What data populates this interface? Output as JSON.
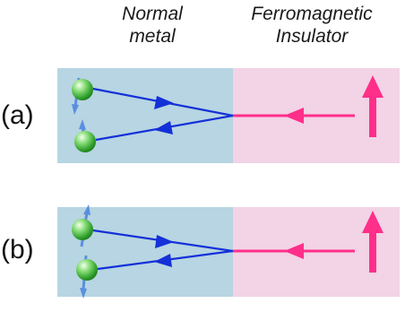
{
  "headers": {
    "normal_metal": [
      "Normal",
      "metal"
    ],
    "ferromagnetic_insulator": [
      "Ferromagnetic",
      "Insulator"
    ]
  },
  "panels": [
    {
      "label": "(a)",
      "spin_up_ball": "top",
      "spin_down_ball": "bottom"
    },
    {
      "label": "(b)",
      "spin_up_ball": "top",
      "spin_down_ball": "bottom"
    }
  ],
  "colors": {
    "normal_metal_region": "#b7d5e2",
    "ferromagnet_region": "#f3d3e6",
    "ray": "#1430d8",
    "magnetization": "#ff2f8a",
    "electron": "#4fc24a",
    "spin_arrow": "#5a8fe0"
  }
}
